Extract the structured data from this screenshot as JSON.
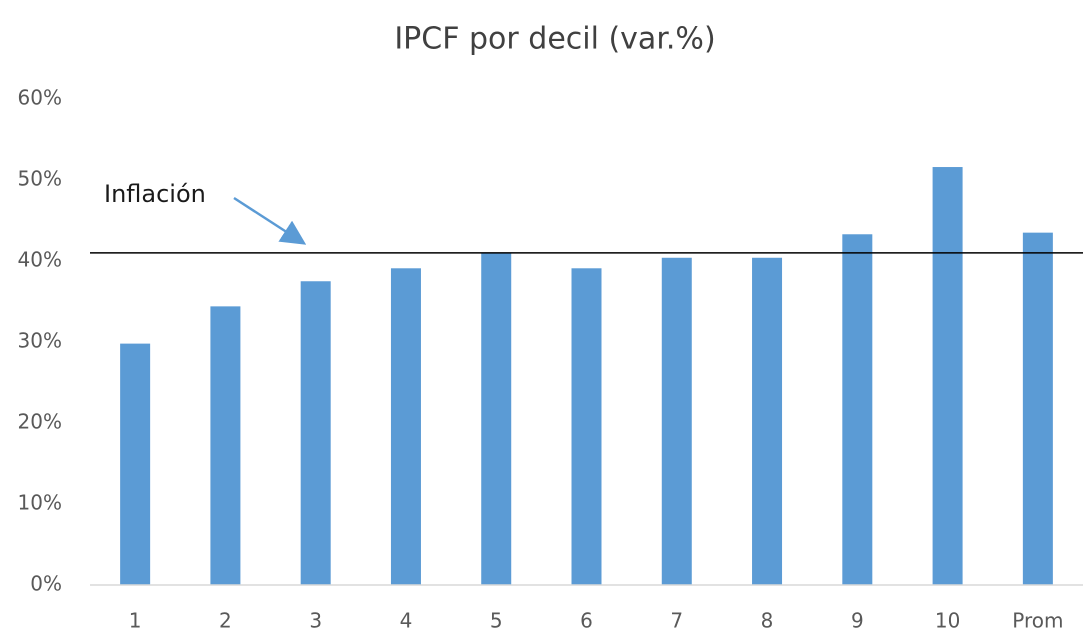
{
  "chart_data": {
    "type": "bar",
    "title": "IPCF por decil (var.%)",
    "categories": [
      "1",
      "2",
      "3",
      "4",
      "5",
      "6",
      "7",
      "8",
      "9",
      "10",
      "Prom"
    ],
    "values": [
      29.8,
      34.4,
      37.5,
      39.1,
      41.0,
      39.1,
      40.4,
      40.4,
      43.3,
      51.6,
      43.5
    ],
    "color": "#5b9bd5",
    "ylim": [
      0,
      60
    ],
    "yticks": [
      {
        "value": 0,
        "label": "0%"
      },
      {
        "value": 10,
        "label": "10%"
      },
      {
        "value": 20,
        "label": "20%"
      },
      {
        "value": 30,
        "label": "30%"
      },
      {
        "value": 40,
        "label": "40%"
      },
      {
        "value": 50,
        "label": "50%"
      },
      {
        "value": 60,
        "label": "60%"
      }
    ],
    "grid": false,
    "reference_line": {
      "label": "Inflación",
      "value": 41,
      "color": "#000000"
    }
  }
}
